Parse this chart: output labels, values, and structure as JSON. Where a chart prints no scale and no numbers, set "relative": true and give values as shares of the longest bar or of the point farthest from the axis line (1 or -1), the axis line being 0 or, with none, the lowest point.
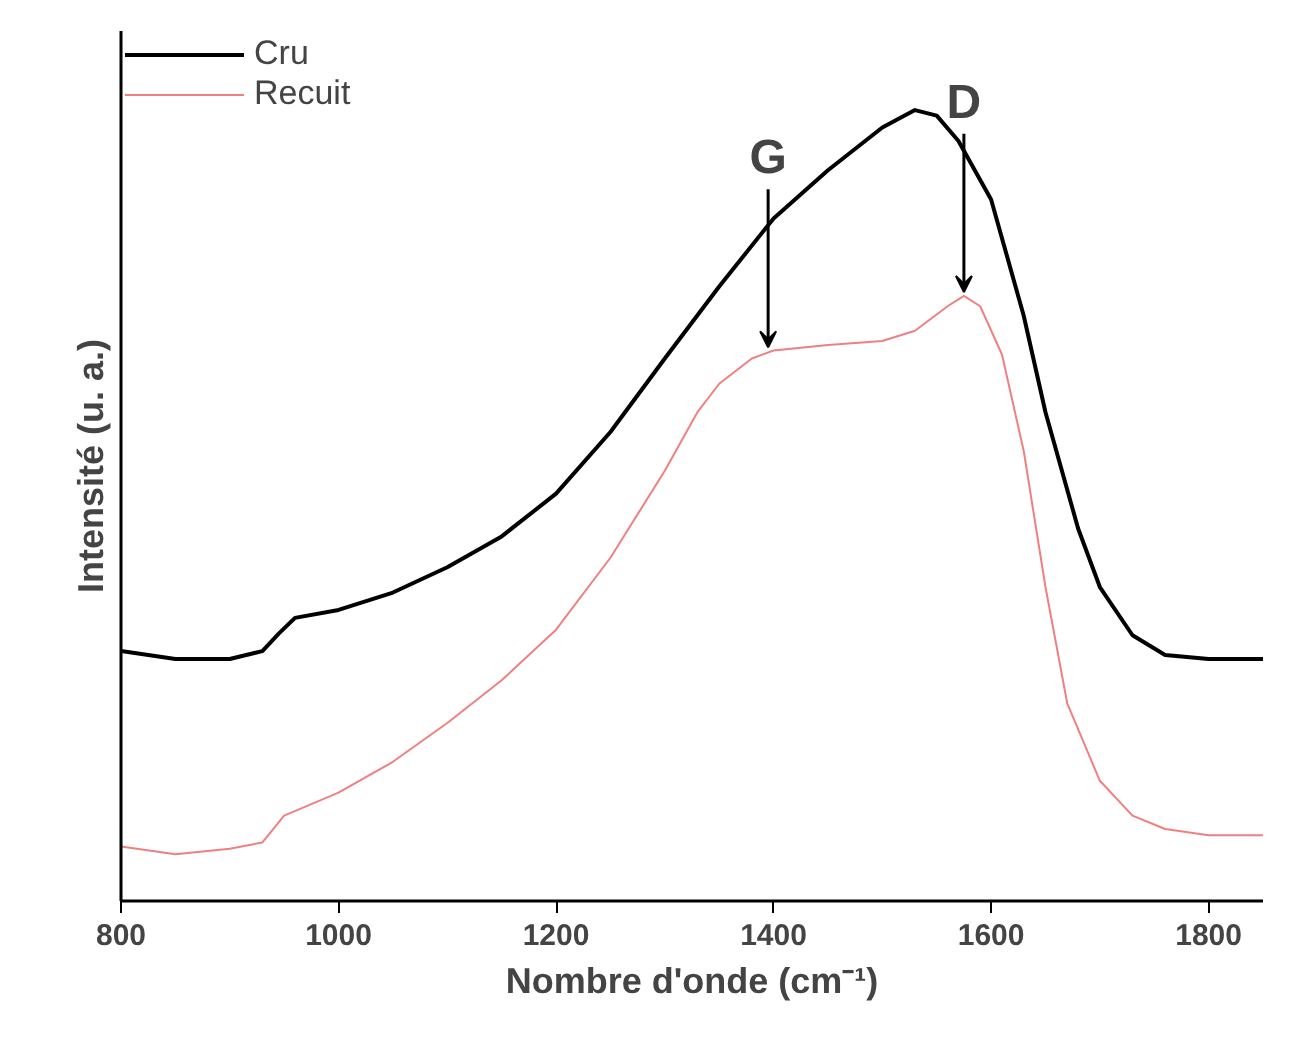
{
  "chart_data": {
    "type": "line",
    "relative": true,
    "xlabel": "Nombre d'onde (cm⁻¹)",
    "ylabel": "Intensité (u. a.)",
    "xlim": [
      800,
      1850
    ],
    "xticks": [
      800,
      1000,
      1200,
      1400,
      1600,
      1800
    ],
    "grid": false,
    "legend": "top left",
    "series": [
      {
        "name": "Cru",
        "color": "#000000",
        "x": [
          800,
          850,
          900,
          930,
          945,
          960,
          1000,
          1050,
          1100,
          1150,
          1200,
          1250,
          1300,
          1350,
          1400,
          1450,
          1500,
          1530,
          1550,
          1570,
          1600,
          1630,
          1650,
          1680,
          1700,
          1730,
          1760,
          1800,
          1850
        ],
        "values": [
          0.316,
          0.306,
          0.306,
          0.316,
          0.338,
          0.358,
          0.368,
          0.39,
          0.422,
          0.461,
          0.515,
          0.593,
          0.686,
          0.777,
          0.863,
          0.924,
          0.978,
          1.0,
          0.993,
          0.961,
          0.887,
          0.74,
          0.618,
          0.471,
          0.397,
          0.336,
          0.311,
          0.306,
          0.306
        ]
      },
      {
        "name": "Recuit",
        "color": "#f08080",
        "x": [
          800,
          850,
          900,
          930,
          950,
          1000,
          1050,
          1100,
          1150,
          1200,
          1250,
          1300,
          1330,
          1350,
          1380,
          1400,
          1450,
          1500,
          1530,
          1560,
          1575,
          1590,
          1610,
          1630,
          1650,
          1670,
          1700,
          1730,
          1760,
          1800,
          1850
        ],
        "values": [
          0.069,
          0.059,
          0.066,
          0.074,
          0.108,
          0.137,
          0.176,
          0.225,
          0.279,
          0.343,
          0.434,
          0.544,
          0.618,
          0.654,
          0.686,
          0.696,
          0.703,
          0.708,
          0.721,
          0.752,
          0.765,
          0.752,
          0.691,
          0.569,
          0.397,
          0.25,
          0.152,
          0.108,
          0.091,
          0.083,
          0.083
        ]
      }
    ],
    "annotations": [
      {
        "text": "G",
        "x": 1395,
        "y": 0.7
      },
      {
        "text": "D",
        "x": 1575,
        "y": 0.77
      }
    ]
  }
}
